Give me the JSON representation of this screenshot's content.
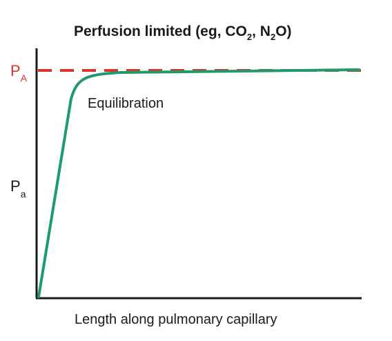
{
  "title": {
    "main": "Perfusion limited (eg, CO",
    "co2_sub": "2",
    "middle": ", N",
    "n2o_sub": "2",
    "end": "O)"
  },
  "y_labels": {
    "alveolar_main": "P",
    "alveolar_sub": "A",
    "arterial_main": "P",
    "arterial_sub": "a"
  },
  "x_axis_label": "Length along pulmonary capillary",
  "curve_annotation": "Equilibration",
  "colors": {
    "alveolar": "#d9342b",
    "curve": "#1f9a6a",
    "axis": "#1a1a1a"
  }
}
